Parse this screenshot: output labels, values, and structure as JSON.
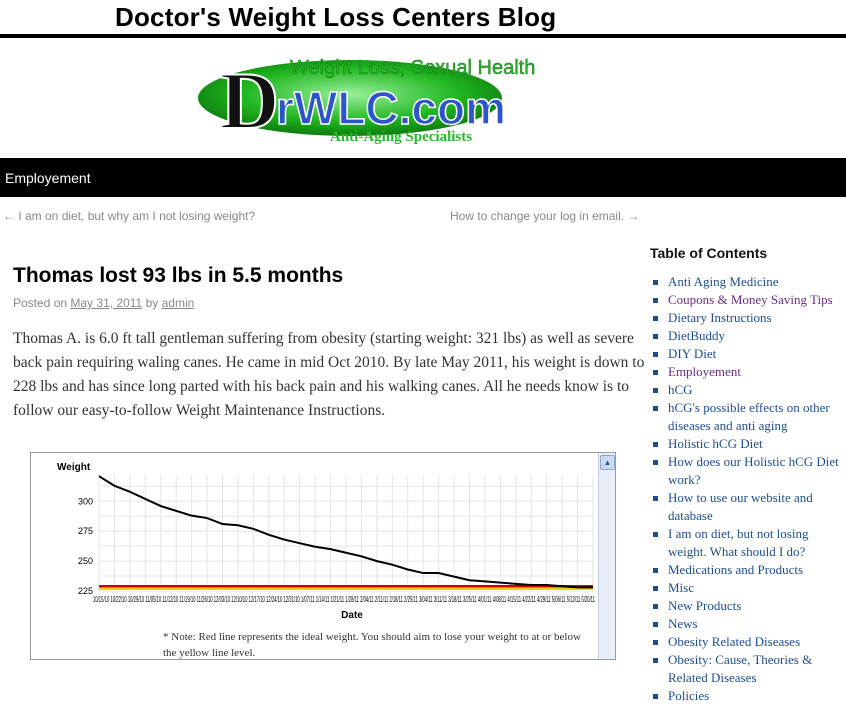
{
  "site_title": "Doctor's Weight Loss Centers Blog",
  "logo": {
    "line1": "Weight Loss, Sexual Health",
    "brand_d": "D",
    "brand_rest": "rWLC.com",
    "line3": "Anti-Aging Specialists"
  },
  "nav": {
    "item": "Employement"
  },
  "post_nav": {
    "prev": "← I am on diet, but why am I not losing weight?",
    "next": "How to change your log in email. →"
  },
  "post": {
    "title": "Thomas lost 93 lbs in 5.5 months",
    "posted_on": "Posted on",
    "date": "May 31, 2011",
    "by": "by",
    "author": "admin",
    "body": "Thomas A. is 6.0 ft tall gentleman suffering from obesity (starting weight: 321 lbs) as well as severe back pain requiring waling canes.  He came in mid Oct 2010.  By late May 2011, his weight is down to 228 lbs and has since long parted with his back pain and his walking canes.  All he needs know is to follow our easy-to-follow Weight Maintenance Instructions."
  },
  "chart_note": "* Note: Red line represents the ideal weight. You should aim to lose your weight to at or below the yellow line level.",
  "chart_data": {
    "type": "line",
    "ylabel": "Weight",
    "xlabel": "Date",
    "yticks": [
      225,
      250,
      275,
      300
    ],
    "ylim": [
      225,
      322
    ],
    "x_tick_text": "10/15/10 10/22/10 10/29/10 11/05/10 11/12/10 11/19/10 11/26/10 12/03/10 12/10/10 12/17/10 12/24/10 12/31/10 1/07/11 1/14/11 1/21/11 1/28/11 2/04/11 2/11/11 2/18/11 2/25/11 3/04/11 3/11/11 3/18/11 3/25/11 4/01/11 4/08/11 4/15/11 4/22/11 4/29/11 5/06/11 5/13/11 5/20/11",
    "series": [
      {
        "color": "#000000",
        "values": [
          321,
          313,
          308,
          302,
          296,
          292,
          288,
          286,
          281,
          280,
          277,
          272,
          268,
          265,
          262,
          260,
          257,
          254,
          250,
          247,
          243,
          240,
          240,
          237,
          234,
          233,
          232,
          231,
          230,
          230,
          229,
          228,
          228
        ]
      }
    ],
    "reference_lines": [
      {
        "color": "#cc0000",
        "value": 229
      },
      {
        "color": "#e6d300",
        "value": 227
      }
    ],
    "grid": true
  },
  "sidebar": {
    "heading": "Table of Contents",
    "items": [
      {
        "label": "Anti Aging Medicine"
      },
      {
        "label": "Coupons & Money Saving Tips"
      },
      {
        "label": "Dietary Instructions"
      },
      {
        "label": "DietBuddy"
      },
      {
        "label": "DIY Diet"
      },
      {
        "label": "Employement"
      },
      {
        "label": "hCG"
      },
      {
        "label": "hCG's possible effects on other diseases and anti aging"
      },
      {
        "label": "Holistic hCG Diet"
      },
      {
        "label": "How does our Holistic hCG Diet work?"
      },
      {
        "label": "How to use our website and database"
      },
      {
        "label": "I am on diet, but not losing weight. What should I do?"
      },
      {
        "label": "Medications and Products"
      },
      {
        "label": "Misc"
      },
      {
        "label": "New Products"
      },
      {
        "label": "News"
      },
      {
        "label": "Obesity Related Diseases"
      },
      {
        "label": "Obesity: Cause, Theories & Related Diseases"
      },
      {
        "label": "Policies"
      }
    ]
  },
  "colors": {
    "link": "#1f4e8c",
    "visited": "#6a2c85",
    "logo_green": "#2bb52b",
    "logo_blue": "#2b55c8"
  }
}
